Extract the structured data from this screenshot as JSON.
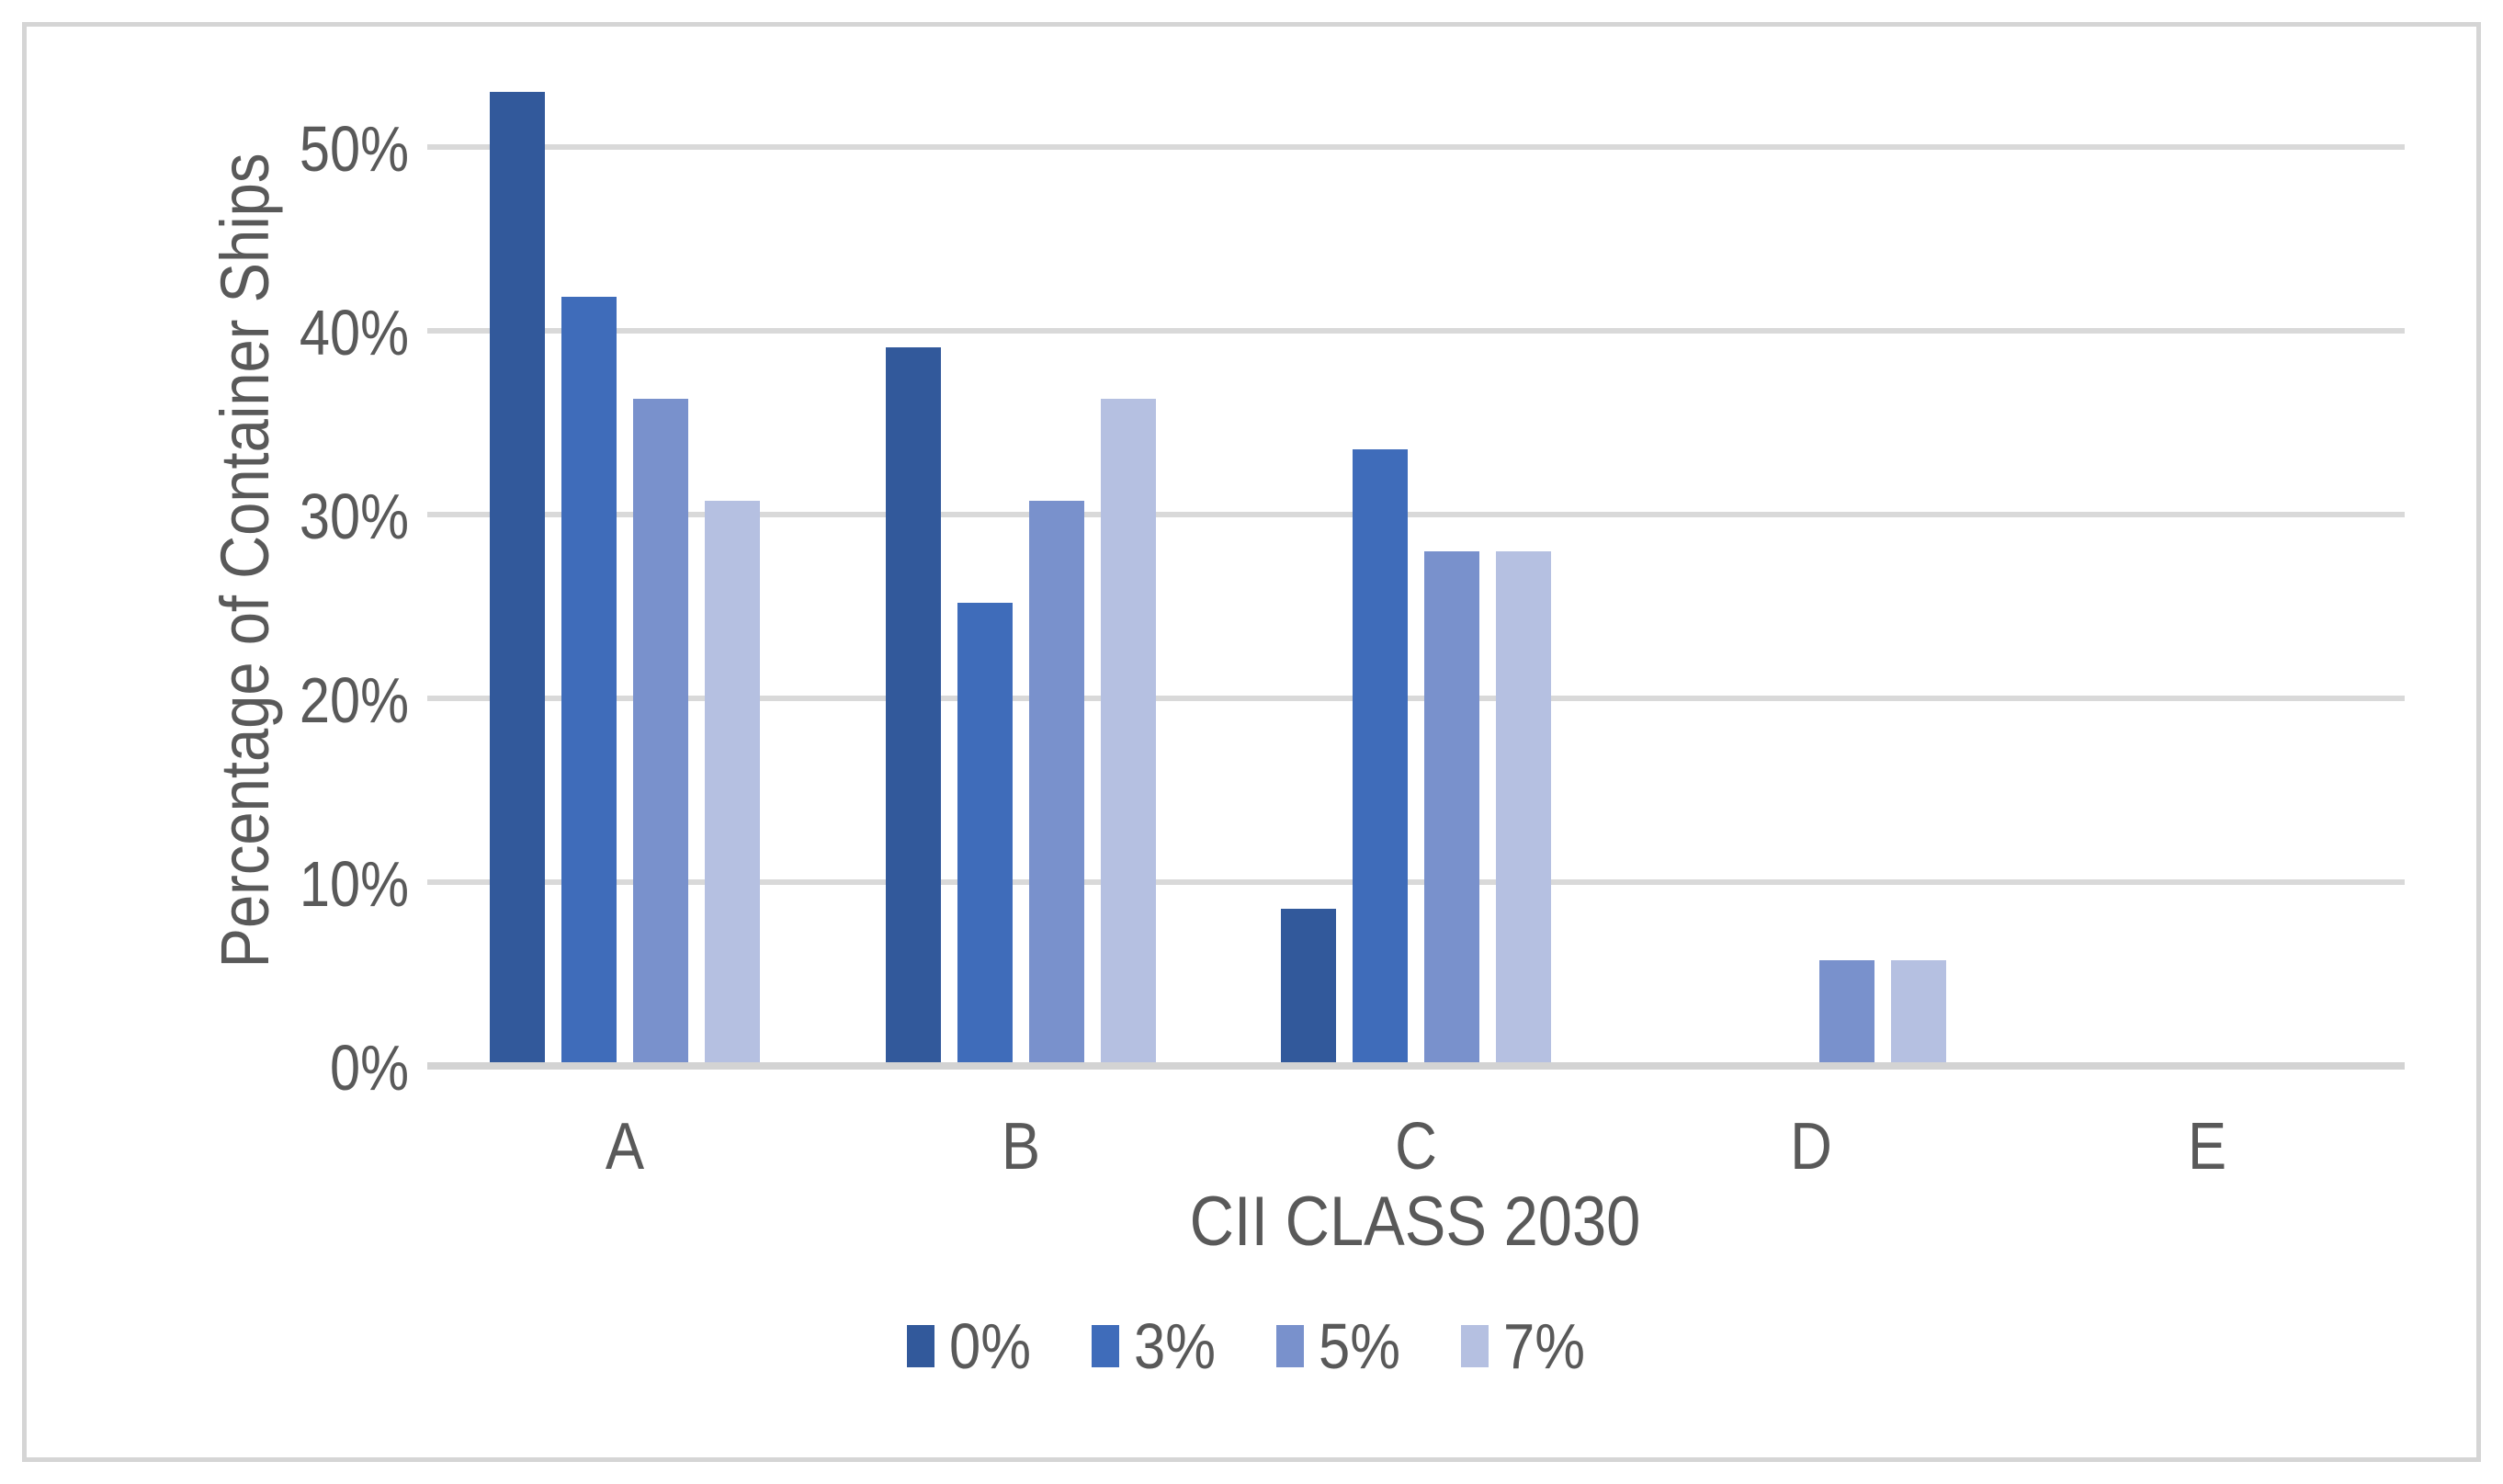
{
  "figure": {
    "background_color": "#FFFFFF",
    "border_color": "#D5D5D5",
    "text_color": "#595959",
    "gridline_color": "#D9D9D9",
    "axis_line_color": "#D3D3D3"
  },
  "chart_data": {
    "type": "bar",
    "title": "",
    "xlabel": "CII CLASS 2030",
    "ylabel": "Percentage of Container Ships",
    "categories": [
      "A",
      "B",
      "C",
      "D",
      "E"
    ],
    "series": [
      {
        "name": "0%",
        "color": "#32599B",
        "values": [
          52.78,
          38.89,
          8.33,
          0,
          0
        ]
      },
      {
        "name": "3%",
        "color": "#3F6CBA",
        "values": [
          41.67,
          25.0,
          33.33,
          0,
          0
        ]
      },
      {
        "name": "5%",
        "color": "#7991CC",
        "values": [
          36.11,
          30.56,
          27.78,
          5.56,
          0
        ]
      },
      {
        "name": "7%",
        "color": "#B5C0E1",
        "values": [
          30.56,
          36.11,
          27.78,
          5.56,
          0
        ]
      }
    ],
    "y_ticks": [
      {
        "label": "0%",
        "value": 0
      },
      {
        "label": "10%",
        "value": 10
      },
      {
        "label": "20%",
        "value": 20
      },
      {
        "label": "30%",
        "value": 30
      },
      {
        "label": "40%",
        "value": 40
      },
      {
        "label": "50%",
        "value": 50
      }
    ],
    "ylim": [
      0,
      55
    ],
    "grid": "horizontal",
    "legend_position": "bottom-center"
  }
}
